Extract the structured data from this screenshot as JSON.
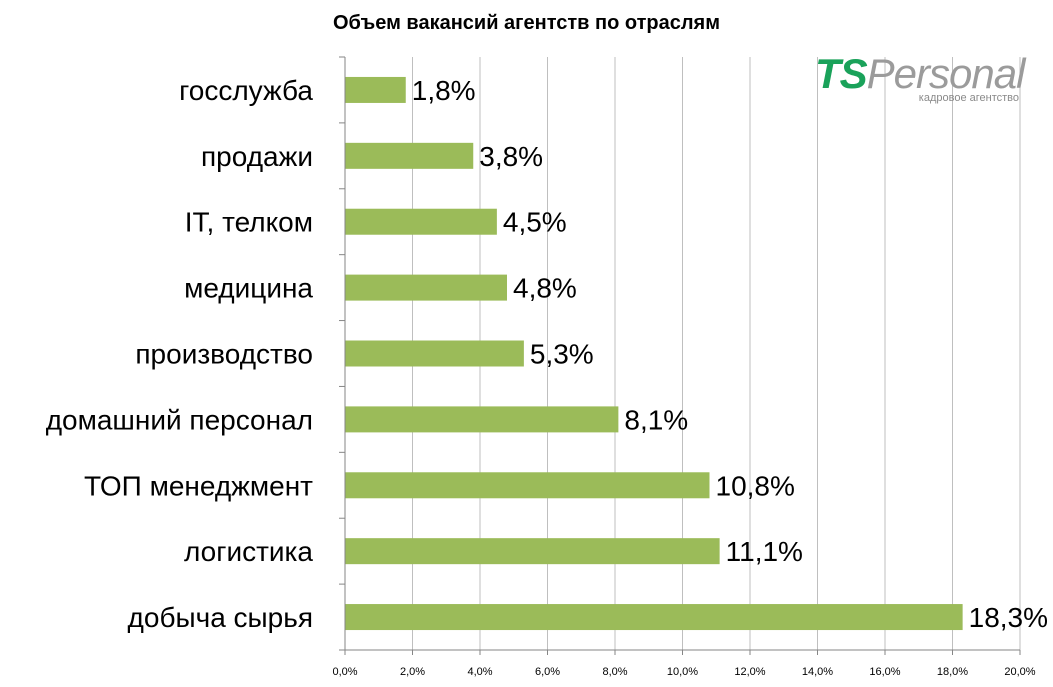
{
  "chart_data": {
    "type": "bar",
    "orientation": "horizontal",
    "title": "Объем вакансий агентств по отраслям",
    "categories": [
      "госслужба",
      "продажи",
      "IT, телком",
      "медицина",
      "производство",
      "домашний персонал",
      "ТОП менеджмент",
      "логистика",
      "добыча сырья"
    ],
    "values": [
      1.8,
      3.8,
      4.5,
      4.8,
      5.3,
      8.1,
      10.8,
      11.1,
      18.3
    ],
    "value_labels": [
      "1,8%",
      "3,8%",
      "4,5%",
      "4,8%",
      "5,3%",
      "8,1%",
      "10,8%",
      "11,1%",
      "18,3%"
    ],
    "x_ticks": [
      "0,0%",
      "2,0%",
      "4,0%",
      "6,0%",
      "8,0%",
      "10,0%",
      "12,0%",
      "14,0%",
      "16,0%",
      "18,0%",
      "20,0%"
    ],
    "xlim": [
      0,
      20
    ],
    "grid": true,
    "bar_color": "#9bbb59"
  },
  "logo": {
    "part1": "TS",
    "part2": "Personal",
    "subtitle": "кадровое агентство"
  }
}
